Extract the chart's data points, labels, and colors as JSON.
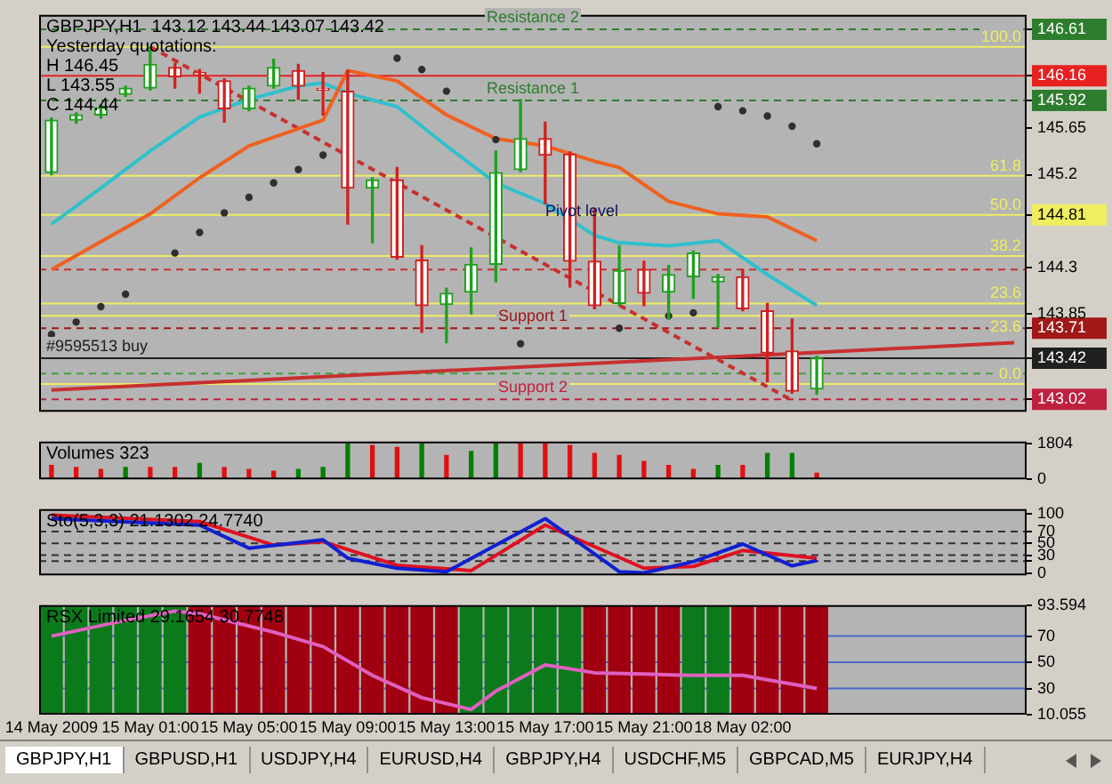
{
  "chart_data": [
    {
      "type": "candlestick",
      "title": "GBPJPY,H1  143.12 143.44 143.07 143.42",
      "categories": [
        "14 May 2009",
        null,
        null,
        null,
        "15 May 01:00",
        null,
        null,
        null,
        "15 May 05:00",
        null,
        null,
        null,
        "15 May 09:00",
        null,
        null,
        null,
        "15 May 13:00",
        null,
        null,
        null,
        "15 May 17:00",
        null,
        null,
        null,
        "15 May 21:00",
        null,
        null,
        null,
        "18 May 02:00",
        null,
        null,
        null,
        null,
        null,
        null,
        null,
        null,
        null,
        null,
        null
      ],
      "ohlc": [
        [
          145.22,
          145.75,
          145.2,
          145.73
        ],
        [
          145.73,
          145.8,
          145.7,
          145.78
        ],
        [
          145.78,
          145.88,
          145.75,
          145.85
        ],
        [
          145.98,
          146.06,
          145.96,
          146.04
        ],
        [
          146.04,
          146.44,
          146.02,
          146.27
        ],
        [
          146.24,
          146.28,
          146.04,
          146.15
        ],
        [
          146.19,
          146.22,
          145.99,
          146.17
        ],
        [
          146.11,
          146.13,
          145.71,
          145.84
        ],
        [
          145.84,
          146.06,
          145.82,
          146.04
        ],
        [
          146.06,
          146.32,
          146.04,
          146.24
        ],
        [
          146.21,
          146.27,
          145.93,
          146.06
        ],
        [
          146.03,
          146.19,
          145.78,
          146.02
        ],
        [
          146.01,
          146.21,
          144.72,
          145.07
        ],
        [
          145.07,
          145.17,
          144.54,
          145.15
        ],
        [
          145.15,
          145.27,
          144.38,
          144.4
        ],
        [
          144.37,
          144.51,
          143.67,
          143.93
        ],
        [
          143.94,
          144.1,
          143.57,
          144.05
        ],
        [
          144.06,
          144.49,
          143.85,
          144.33
        ],
        [
          144.33,
          145.43,
          144.16,
          145.22
        ],
        [
          145.25,
          145.93,
          145.23,
          145.55
        ],
        [
          145.55,
          145.71,
          144.92,
          145.39
        ],
        [
          145.4,
          145.42,
          144.11,
          144.36
        ],
        [
          144.36,
          144.87,
          143.9,
          143.93
        ],
        [
          143.95,
          144.51,
          143.93,
          144.27
        ],
        [
          144.28,
          144.36,
          143.93,
          144.05
        ],
        [
          144.06,
          144.32,
          143.8,
          144.23
        ],
        [
          144.21,
          144.46,
          144.0,
          144.44
        ],
        [
          144.16,
          144.23,
          143.72,
          144.21
        ],
        [
          144.21,
          144.28,
          143.88,
          143.9
        ],
        [
          143.88,
          143.95,
          143.19,
          143.47
        ],
        [
          143.49,
          143.8,
          143.08,
          143.1
        ],
        [
          143.12,
          143.44,
          143.07,
          143.42
        ],
        null,
        null,
        null,
        null,
        null,
        null,
        null,
        null
      ],
      "series": [
        {
          "type": "line",
          "color": "#f06020",
          "values": [
            144.28,
            null,
            null,
            null,
            144.82,
            null,
            145.17,
            null,
            145.48,
            null,
            null,
            145.73,
            146.21,
            null,
            146.11,
            null,
            145.78,
            null,
            145.55,
            null,
            145.48,
            null,
            145.33,
            145.27,
            null,
            144.94,
            null,
            144.82,
            null,
            144.79,
            null,
            144.56,
            null,
            null,
            null,
            null,
            null,
            null,
            null,
            null
          ]
        },
        {
          "type": "line",
          "color": "#30c0cc",
          "values": [
            144.72,
            null,
            145.07,
            null,
            145.43,
            null,
            145.76,
            null,
            145.93,
            null,
            146.06,
            146.09,
            145.99,
            null,
            145.86,
            null,
            145.48,
            null,
            145.12,
            null,
            144.92,
            null,
            144.61,
            144.54,
            null,
            144.51,
            null,
            144.56,
            null,
            144.23,
            null,
            143.93,
            null,
            null,
            null,
            null,
            null,
            null,
            null,
            null
          ]
        },
        {
          "type": "scatter",
          "marker": "circle",
          "color": "#303030",
          "values": [
            143.65,
            143.77,
            143.92,
            144.04,
            null,
            144.44,
            144.64,
            144.83,
            144.98,
            145.12,
            145.25,
            145.39,
            null,
            null,
            146.33,
            146.22,
            146.01,
            null,
            145.54,
            143.56,
            null,
            null,
            null,
            143.71,
            null,
            143.83,
            143.86,
            145.86,
            145.82,
            145.77,
            145.67,
            145.5,
            null,
            null,
            null,
            null,
            null,
            null,
            null,
            null
          ]
        },
        {
          "type": "line",
          "color": "#c83030",
          "values": [
            143.11,
            null,
            null,
            null,
            null,
            null,
            null,
            null,
            null,
            null,
            null,
            null,
            null,
            null,
            null,
            null,
            null,
            null,
            null,
            null,
            null,
            null,
            null,
            null,
            null,
            null,
            null,
            null,
            null,
            null,
            null,
            null,
            null,
            null,
            null,
            null,
            null,
            null,
            null,
            143.57
          ]
        },
        {
          "type": "line",
          "color": "#c83030",
          "line_style": "dashed",
          "values": [
            null,
            null,
            null,
            null,
            146.44,
            null,
            null,
            null,
            null,
            null,
            null,
            null,
            null,
            null,
            null,
            null,
            null,
            null,
            null,
            null,
            null,
            null,
            null,
            null,
            null,
            null,
            null,
            null,
            null,
            null,
            143.01,
            null,
            null,
            null,
            null,
            null,
            null,
            null,
            null,
            null
          ]
        }
      ],
      "ref_lines": [
        {
          "axis": "y",
          "value": 146.61,
          "color": "#2e7d2e",
          "line_style": "dashed",
          "label": "Resistance 2"
        },
        {
          "axis": "y",
          "value": 146.44,
          "color": "#eeee60",
          "line_style": "solid"
        },
        {
          "axis": "y",
          "value": 146.16,
          "color": "#e82020",
          "line_style": "solid"
        },
        {
          "axis": "y",
          "value": 145.92,
          "color": "#2e7d2e",
          "line_style": "dashed",
          "label": "Resistance 1"
        },
        {
          "axis": "y",
          "value": 145.19,
          "color": "#eeee60",
          "line_style": "solid"
        },
        {
          "axis": "y",
          "value": 144.81,
          "color": "#eeee60",
          "line_style": "solid"
        },
        {
          "axis": "y",
          "value": 144.41,
          "color": "#eeee60",
          "line_style": "solid"
        },
        {
          "axis": "y",
          "value": 144.28,
          "color": "#c83030",
          "line_style": "dashed"
        },
        {
          "axis": "y",
          "value": 143.95,
          "color": "#eeee60",
          "line_style": "solid"
        },
        {
          "axis": "y",
          "value": 143.83,
          "color": "#eeee60",
          "line_style": "solid"
        },
        {
          "axis": "y",
          "value": 143.71,
          "color": "#a01818",
          "line_style": "dashed",
          "label": "Support 1"
        },
        {
          "axis": "y",
          "value": 143.42,
          "color": "#202020",
          "line_style": "solid",
          "label": "#9595513 buy"
        },
        {
          "axis": "y",
          "value": 143.27,
          "color": "#40a040",
          "line_style": "dashed"
        },
        {
          "axis": "y",
          "value": 143.17,
          "color": "#eeee60",
          "line_style": "solid"
        },
        {
          "axis": "y",
          "value": 143.02,
          "color": "#c02040",
          "line_style": "dashed",
          "label": "Support 2"
        }
      ],
      "annotations": [
        "Yesterday quotations:",
        "H 146.45",
        "L 143.55",
        "C 144.44",
        {
          "text": "Pivot level",
          "x": "15 May 17:00",
          "y": 144.75
        },
        {
          "text": "100.0",
          "y": 146.44
        },
        {
          "text": "61.8",
          "y": 145.19
        },
        {
          "text": "50.0",
          "y": 144.81
        },
        {
          "text": "38.2",
          "y": 144.41
        },
        {
          "text": "23.6",
          "y": 143.95
        },
        {
          "text": "23.6",
          "y": 143.83
        },
        {
          "text": "0.0",
          "y": 143.17
        }
      ],
      "ylim": [
        142.9,
        146.75
      ],
      "yticks": [
        143.02,
        143.42,
        143.71,
        143.85,
        144.3,
        144.81,
        145.2,
        145.65,
        145.92,
        146.16,
        146.61
      ],
      "tick_labels": "y"
    },
    {
      "type": "bar",
      "title": "Volumes 323",
      "categories": [
        "14 May 2009",
        null,
        null,
        null,
        "15 May 01:00",
        null,
        null,
        null,
        "15 May 05:00",
        null,
        null,
        null,
        "15 May 09:00",
        null,
        null,
        null,
        "15 May 13:00",
        null,
        null,
        null,
        "15 May 17:00",
        null,
        null,
        null,
        "15 May 21:00",
        null,
        null,
        null,
        "18 May 02:00",
        null,
        null,
        null,
        null,
        null,
        null,
        null,
        null,
        null,
        null,
        null
      ],
      "values": [
        700,
        600,
        500,
        600,
        600,
        600,
        800,
        600,
        500,
        400,
        500,
        600,
        1800,
        1700,
        1600,
        1800,
        1200,
        1400,
        1804,
        1800,
        1800,
        1700,
        1300,
        1200,
        900,
        700,
        500,
        700,
        700,
        1300,
        1300,
        300,
        null,
        null,
        null,
        null,
        null,
        null,
        null,
        null
      ],
      "colors": [
        "#e01010",
        "#e01010",
        "#e01010",
        "#008000",
        "#e01010",
        "#e01010",
        "#008000",
        "#e01010",
        "#e01010",
        "#e01010",
        "#008000",
        "#008000",
        "#008000",
        "#e01010",
        "#e01010",
        "#008000",
        "#e01010",
        "#008000",
        "#008000",
        "#e01010",
        "#e01010",
        "#e01010",
        "#e01010",
        "#e01010",
        "#e01010",
        "#e01010",
        "#e01010",
        "#008000",
        "#e01010",
        "#008000",
        "#008000",
        "#e01010",
        "#e01010",
        "#e01010",
        "#e01010",
        "#e01010",
        "#e01010",
        "#e01010",
        "#e01010",
        "#e01010"
      ],
      "ylim": [
        0,
        1900
      ],
      "yticks": [
        0,
        1804
      ],
      "tick_labels": "y"
    },
    {
      "type": "line",
      "title": "Sto(5,3,3) 21.1302 24.7740",
      "categories": [
        "14 May 2009",
        null,
        null,
        null,
        "15 May 01:00",
        null,
        null,
        null,
        "15 May 05:00",
        null,
        null,
        null,
        "15 May 09:00",
        null,
        null,
        null,
        "15 May 13:00",
        null,
        null,
        null,
        "15 May 17:00",
        null,
        null,
        null,
        "15 May 21:00",
        null,
        null,
        null,
        "18 May 02:00",
        null,
        null,
        null,
        null,
        null,
        null,
        null,
        null,
        null,
        null,
        null
      ],
      "series": [
        {
          "color": "#1020d0",
          "values": [
            92,
            null,
            null,
            null,
            null,
            null,
            81,
            null,
            42,
            null,
            null,
            56,
            25,
            null,
            8,
            null,
            2,
            null,
            47,
            null,
            92,
            null,
            null,
            2,
            0,
            null,
            19,
            null,
            49,
            null,
            12,
            21,
            null,
            null,
            null,
            null,
            null,
            null,
            null,
            null
          ]
        },
        {
          "color": "#e01020",
          "values": [
            98,
            null,
            null,
            null,
            null,
            null,
            87,
            null,
            null,
            47,
            null,
            53,
            null,
            null,
            13,
            null,
            null,
            4,
            null,
            null,
            81,
            null,
            null,
            null,
            8,
            null,
            11,
            null,
            38,
            null,
            null,
            25,
            null,
            null,
            null,
            null,
            null,
            null,
            null,
            null
          ]
        }
      ],
      "ref_lines": [
        {
          "axis": "y",
          "value": 70,
          "color": "#303030",
          "line_style": "dashed"
        },
        {
          "axis": "y",
          "value": 50,
          "color": "#303030",
          "line_style": "dashed"
        },
        {
          "axis": "y",
          "value": 30,
          "color": "#303030",
          "line_style": "dashed"
        },
        {
          "axis": "y",
          "value": 20,
          "color": "#303030",
          "line_style": "dashed"
        }
      ],
      "ylim": [
        -4,
        108
      ],
      "yticks": [
        0,
        {
          "value": 20,
          "label": null
        },
        30,
        50,
        70,
        100
      ],
      "tick_labels": "y"
    },
    {
      "type": "line",
      "title": "RSX Limited 29.1654 30.7748",
      "categories": [
        "14 May 2009",
        null,
        null,
        null,
        "15 May 01:00",
        null,
        null,
        null,
        "15 May 05:00",
        null,
        null,
        null,
        "15 May 09:00",
        null,
        null,
        null,
        "15 May 13:00",
        null,
        null,
        null,
        "15 May 17:00",
        null,
        null,
        null,
        "15 May 21:00",
        null,
        null,
        null,
        "18 May 02:00",
        null,
        null,
        null,
        null,
        null,
        null,
        null,
        null,
        null,
        null,
        null
      ],
      "series": [
        {
          "type": "bar",
          "base": [
            10.1,
            10.1,
            10.1,
            10.1,
            10.1,
            10.1,
            10.1,
            10.1,
            10.1,
            10.1,
            10.1,
            10.1,
            10.1,
            10.1,
            10.1,
            10.1,
            10.1,
            10.1,
            10.1,
            10.1,
            10.1,
            10.1,
            10.1,
            10.1,
            10.1,
            10.1,
            10.1,
            10.1,
            10.1,
            10.1,
            10.1,
            10.1,
            null,
            null,
            null,
            null,
            null,
            null,
            null,
            null
          ],
          "values": [
            83.4,
            83.4,
            83.4,
            83.4,
            83.4,
            83.4,
            83.4,
            83.4,
            83.4,
            83.4,
            83.4,
            83.4,
            83.4,
            83.4,
            83.4,
            83.4,
            83.4,
            83.4,
            83.4,
            83.4,
            83.4,
            83.4,
            83.4,
            83.4,
            83.4,
            83.4,
            83.4,
            83.4,
            83.4,
            83.4,
            83.4,
            83.4,
            null,
            null,
            null,
            null,
            null,
            null,
            null,
            null
          ],
          "colors": [
            "#0a7a1a",
            "#0a7a1a",
            "#0a7a1a",
            "#0a7a1a",
            "#0a7a1a",
            "#0a7a1a",
            "#a00010",
            "#a00010",
            "#a00010",
            "#a00010",
            "#a00010",
            "#a00010",
            "#a00010",
            "#a00010",
            "#a00010",
            "#a00010",
            "#a00010",
            "#0a7a1a",
            "#0a7a1a",
            "#0a7a1a",
            "#0a7a1a",
            "#0a7a1a",
            "#a00010",
            "#a00010",
            "#a00010",
            "#a00010",
            "#0a7a1a",
            "#0a7a1a",
            "#a00010",
            "#a00010",
            "#a00010",
            "#a00010",
            "#a00010",
            "#a00010",
            "#a00010",
            "#a00010",
            "#a00010",
            "#a00010",
            "#a00010",
            "#a00010"
          ]
        },
        {
          "type": "line",
          "color": "#e060c0",
          "values": [
            70,
            null,
            null,
            82,
            null,
            89,
            87,
            null,
            null,
            73,
            null,
            62,
            null,
            40,
            null,
            23,
            null,
            14,
            28,
            null,
            48,
            null,
            42,
            null,
            41,
            null,
            40,
            null,
            40,
            null,
            null,
            30,
            null,
            null,
            null,
            null,
            null,
            null,
            null,
            null
          ]
        }
      ],
      "ref_lines": [
        {
          "axis": "y",
          "value": 70,
          "color": "#4a68c8",
          "line_style": "solid"
        },
        {
          "axis": "y",
          "value": 50,
          "color": "#4a68c8",
          "line_style": "solid"
        },
        {
          "axis": "y",
          "value": 30,
          "color": "#4a68c8",
          "line_style": "solid"
        }
      ],
      "ylim": [
        10.055,
        93.594
      ],
      "yticks": [
        10.055,
        30,
        50,
        70,
        93.594
      ]
    },
    {
      "type": "other",
      "annotations": [
        "GBPJPY,H1",
        "GBPUSD,H1",
        "USDJPY,H4",
        "EURUSD,H4",
        "GBPJPY,H4",
        "USDCHF,M5",
        "GBPCAD,M5",
        "EURJPY,H4"
      ]
    }
  ]
}
